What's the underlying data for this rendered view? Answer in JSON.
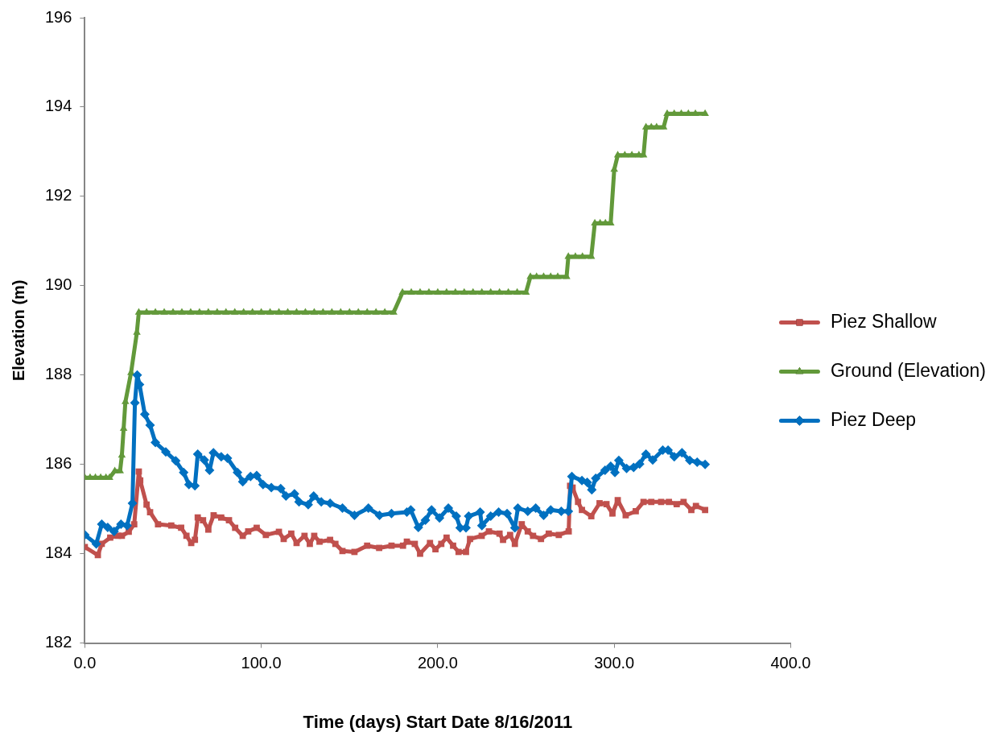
{
  "chart_data": {
    "type": "line",
    "xlabel": "Time (days) Start Date 8/16/2011",
    "ylabel": "Elevation (m)",
    "xlim": [
      0,
      400
    ],
    "xticks": [
      {
        "value": 0,
        "label": "0.0"
      },
      {
        "value": 100,
        "label": "100.0"
      },
      {
        "value": 200,
        "label": "200.0"
      },
      {
        "value": 300,
        "label": "300.0"
      },
      {
        "value": 400,
        "label": "400.0"
      }
    ],
    "ylim": [
      182,
      196
    ],
    "yticks": [
      182,
      184,
      186,
      188,
      190,
      192,
      194,
      196
    ],
    "grid": false,
    "legend": "right",
    "line_style": "solid",
    "series": [
      {
        "name": "Piez Shallow",
        "color": "#c0504d",
        "marker": "square",
        "x": [
          0,
          7.4,
          9.6,
          14.4,
          18.8,
          21,
          24.9,
          28,
          30.6,
          31.4,
          35,
          37,
          41.5,
          49,
          54.6,
          57.6,
          60.3,
          62.4,
          64,
          67,
          70,
          73,
          77.3,
          81.7,
          85.2,
          89.5,
          92.6,
          97.4,
          102.6,
          110,
          112.7,
          117,
          120,
          124.5,
          127.5,
          130,
          133,
          139,
          142,
          146,
          152.8,
          160,
          166.8,
          173.8,
          180.3,
          182.5,
          187,
          190,
          195.6,
          198.7,
          202,
          205,
          208.7,
          211.8,
          216,
          218.3,
          224.9,
          229,
          235,
          237,
          241,
          243.7,
          247.6,
          251,
          254,
          258.5,
          262.9,
          268.6,
          274.2,
          275,
          276.4,
          279.5,
          281.7,
          287,
          291.7,
          295.6,
          299,
          302,
          306.5,
          312.2,
          316.6,
          321,
          326.6,
          331,
          335.4,
          339.3,
          343.7,
          346.3,
          351.5
        ],
        "values": [
          184.15,
          183.97,
          184.22,
          184.36,
          184.4,
          184.4,
          184.49,
          184.66,
          185.84,
          185.64,
          185.1,
          184.93,
          184.66,
          184.63,
          184.58,
          184.4,
          184.24,
          184.31,
          184.81,
          184.75,
          184.54,
          184.86,
          184.81,
          184.75,
          184.58,
          184.4,
          184.5,
          184.58,
          184.42,
          184.49,
          184.33,
          184.45,
          184.24,
          184.4,
          184.22,
          184.4,
          184.27,
          184.31,
          184.22,
          184.06,
          184.04,
          184.18,
          184.13,
          184.18,
          184.18,
          184.27,
          184.22,
          184,
          184.24,
          184.1,
          184.22,
          184.36,
          184.18,
          184.04,
          184.04,
          184.33,
          184.4,
          184.5,
          184.45,
          184.31,
          184.42,
          184.22,
          184.66,
          184.5,
          184.4,
          184.33,
          184.45,
          184.42,
          184.5,
          185.52,
          185.48,
          185.16,
          184.98,
          184.84,
          185.13,
          185.11,
          184.9,
          185.2,
          184.86,
          184.95,
          185.16,
          185.16,
          185.16,
          185.16,
          185.11,
          185.16,
          184.98,
          185.07,
          184.98
        ]
      },
      {
        "name": "Ground (Elevation)",
        "color": "#62993a",
        "marker": "triangle",
        "x": [
          0,
          3,
          6,
          9,
          12,
          14,
          17,
          20,
          21,
          22,
          23,
          26.2,
          29.5,
          30.6,
          35,
          40,
          45,
          50,
          55,
          60,
          65,
          70,
          75,
          80,
          85,
          90,
          95,
          100,
          105,
          110,
          115,
          120,
          125,
          130,
          135,
          140,
          145,
          150,
          155,
          160,
          165,
          170,
          175,
          180,
          185,
          190,
          195,
          200,
          205,
          210,
          215,
          220,
          225,
          230,
          235,
          240,
          245,
          250,
          252.5,
          256,
          260,
          264,
          268,
          273,
          274,
          278,
          282,
          287,
          289,
          292,
          295,
          298,
          300,
          302,
          306,
          310,
          314,
          316.6,
          318,
          321,
          324,
          328,
          330,
          334,
          338,
          342,
          346,
          351.5
        ],
        "values": [
          185.7,
          185.7,
          185.7,
          185.7,
          185.7,
          185.7,
          185.85,
          185.85,
          186.2,
          186.8,
          187.4,
          188.05,
          188.95,
          189.4,
          189.4,
          189.4,
          189.4,
          189.4,
          189.4,
          189.4,
          189.4,
          189.4,
          189.4,
          189.4,
          189.4,
          189.4,
          189.4,
          189.4,
          189.4,
          189.4,
          189.4,
          189.4,
          189.4,
          189.4,
          189.4,
          189.4,
          189.4,
          189.4,
          189.4,
          189.4,
          189.4,
          189.4,
          189.4,
          189.85,
          189.85,
          189.85,
          189.85,
          189.85,
          189.85,
          189.85,
          189.85,
          189.85,
          189.85,
          189.85,
          189.85,
          189.85,
          189.85,
          189.85,
          190.2,
          190.2,
          190.2,
          190.2,
          190.2,
          190.2,
          190.65,
          190.65,
          190.65,
          190.65,
          191.4,
          191.4,
          191.4,
          191.4,
          192.6,
          192.92,
          192.92,
          192.92,
          192.92,
          192.92,
          193.55,
          193.55,
          193.55,
          193.55,
          193.85,
          193.85,
          193.85,
          193.85,
          193.85,
          193.85
        ]
      },
      {
        "name": "Piez Deep",
        "color": "#0070c0",
        "marker": "diamond",
        "x": [
          0,
          6.5,
          9.6,
          13,
          16.6,
          20.5,
          24,
          27,
          28.4,
          29.7,
          31,
          34,
          37,
          40,
          45.9,
          51.5,
          56,
          59,
          62.4,
          64,
          67.7,
          70.7,
          72.9,
          77.3,
          80.8,
          86.5,
          89.5,
          93.9,
          97.4,
          101,
          105.7,
          111,
          114,
          118.8,
          121.4,
          126.6,
          129.7,
          134,
          139,
          146,
          152.8,
          160.7,
          167,
          173.8,
          182.5,
          184.7,
          189,
          193,
          196.5,
          201,
          206,
          210.5,
          212.7,
          216,
          217.5,
          224,
          225,
          230,
          234.5,
          239.3,
          243.7,
          245.4,
          251,
          255.5,
          260,
          264,
          270,
          274,
          276,
          281.7,
          284.7,
          287.3,
          289.5,
          294.8,
          298,
          300.4,
          302.6,
          307,
          311,
          314.4,
          318,
          321.8,
          327.5,
          330.5,
          334,
          338.4,
          342.8,
          347,
          351.5
        ],
        "values": [
          184.42,
          184.22,
          184.66,
          184.59,
          184.5,
          184.66,
          184.63,
          185.13,
          187.38,
          188,
          187.79,
          187.12,
          186.88,
          186.49,
          186.28,
          186.08,
          185.82,
          185.55,
          185.52,
          186.23,
          186.1,
          185.87,
          186.26,
          186.17,
          186.14,
          185.82,
          185.61,
          185.73,
          185.75,
          185.55,
          185.48,
          185.46,
          185.29,
          185.34,
          185.16,
          185.1,
          185.29,
          185.16,
          185.13,
          185.02,
          184.86,
          185.02,
          184.86,
          184.9,
          184.93,
          184.98,
          184.59,
          184.75,
          184.98,
          184.8,
          185.02,
          184.84,
          184.58,
          184.58,
          184.84,
          184.93,
          184.63,
          184.84,
          184.93,
          184.9,
          184.58,
          185.02,
          184.95,
          185.02,
          184.86,
          184.98,
          184.95,
          184.95,
          185.73,
          185.64,
          185.6,
          185.43,
          185.69,
          185.87,
          185.96,
          185.82,
          186.09,
          185.91,
          185.93,
          186.01,
          186.23,
          186.1,
          186.32,
          186.32,
          186.17,
          186.26,
          186.09,
          186.05,
          186
        ]
      }
    ]
  }
}
